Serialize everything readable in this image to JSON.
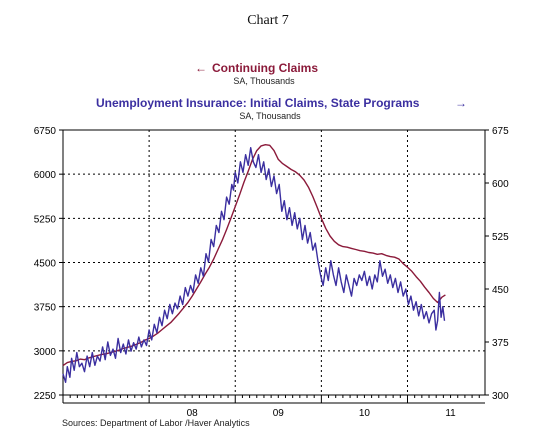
{
  "chart_data": {
    "type": "line",
    "title": "Chart 7",
    "legend": [
      {
        "arrow": "←",
        "name": "Continuing Claims",
        "units": "SA, Thousands",
        "axis": "left",
        "color": "#8b1a3a"
      },
      {
        "arrow": "→",
        "name": "Unemployment Insurance: Initial Claims, State Programs",
        "units": "SA, Thousands",
        "axis": "right",
        "color": "#3b2fa0"
      }
    ],
    "left_axis": {
      "min": 2250,
      "max": 6750,
      "ticks": [
        "2250",
        "3000",
        "3750",
        "4500",
        "5250",
        "6000",
        "6750"
      ],
      "tick_values": [
        2250,
        3000,
        3750,
        4500,
        5250,
        6000,
        6750
      ]
    },
    "right_axis": {
      "min": 300,
      "max": 675,
      "ticks": [
        "300",
        "375",
        "450",
        "525",
        "600",
        "675"
      ],
      "tick_values": [
        300,
        375,
        450,
        525,
        600,
        675
      ]
    },
    "x_axis": {
      "start": 2007.0,
      "end": 2011.9,
      "year_labels": [
        {
          "label": "08",
          "x": 2008.5
        },
        {
          "label": "09",
          "x": 2009.5
        },
        {
          "label": "10",
          "x": 2010.5
        },
        {
          "label": "11",
          "x": 2011.5
        }
      ]
    },
    "vertical_reference_lines": [
      2008.0,
      2009.0,
      2010.0,
      2011.0
    ],
    "horizontal_gridlines": [
      3000,
      3750,
      4500,
      5250,
      6000
    ],
    "grid": true,
    "series": [
      {
        "name": "Continuing Claims",
        "axis": "left",
        "color": "#8b1a3a",
        "points": [
          [
            2007.0,
            2750
          ],
          [
            2007.05,
            2800
          ],
          [
            2007.1,
            2820
          ],
          [
            2007.15,
            2830
          ],
          [
            2007.2,
            2860
          ],
          [
            2007.25,
            2850
          ],
          [
            2007.3,
            2880
          ],
          [
            2007.35,
            2900
          ],
          [
            2007.4,
            2920
          ],
          [
            2007.45,
            2940
          ],
          [
            2007.5,
            2950
          ],
          [
            2007.55,
            2970
          ],
          [
            2007.6,
            2990
          ],
          [
            2007.65,
            3010
          ],
          [
            2007.7,
            3040
          ],
          [
            2007.75,
            3060
          ],
          [
            2007.8,
            3080
          ],
          [
            2007.85,
            3110
          ],
          [
            2007.9,
            3140
          ],
          [
            2007.95,
            3180
          ],
          [
            2008.0,
            3210
          ],
          [
            2008.05,
            3250
          ],
          [
            2008.1,
            3300
          ],
          [
            2008.15,
            3360
          ],
          [
            2008.2,
            3420
          ],
          [
            2008.25,
            3480
          ],
          [
            2008.3,
            3560
          ],
          [
            2008.35,
            3640
          ],
          [
            2008.4,
            3730
          ],
          [
            2008.45,
            3820
          ],
          [
            2008.5,
            3930
          ],
          [
            2008.55,
            4050
          ],
          [
            2008.6,
            4170
          ],
          [
            2008.65,
            4300
          ],
          [
            2008.7,
            4420
          ],
          [
            2008.75,
            4560
          ],
          [
            2008.8,
            4720
          ],
          [
            2008.85,
            4880
          ],
          [
            2008.9,
            5060
          ],
          [
            2008.95,
            5250
          ],
          [
            2009.0,
            5450
          ],
          [
            2009.05,
            5650
          ],
          [
            2009.1,
            5860
          ],
          [
            2009.15,
            6050
          ],
          [
            2009.2,
            6250
          ],
          [
            2009.25,
            6400
          ],
          [
            2009.3,
            6480
          ],
          [
            2009.35,
            6500
          ],
          [
            2009.4,
            6490
          ],
          [
            2009.45,
            6400
          ],
          [
            2009.5,
            6250
          ],
          [
            2009.55,
            6180
          ],
          [
            2009.6,
            6130
          ],
          [
            2009.65,
            6080
          ],
          [
            2009.7,
            6040
          ],
          [
            2009.75,
            5980
          ],
          [
            2009.8,
            5900
          ],
          [
            2009.85,
            5780
          ],
          [
            2009.9,
            5620
          ],
          [
            2009.95,
            5440
          ],
          [
            2010.0,
            5250
          ],
          [
            2010.05,
            5080
          ],
          [
            2010.1,
            4950
          ],
          [
            2010.15,
            4860
          ],
          [
            2010.2,
            4800
          ],
          [
            2010.25,
            4770
          ],
          [
            2010.3,
            4760
          ],
          [
            2010.35,
            4740
          ],
          [
            2010.4,
            4720
          ],
          [
            2010.45,
            4700
          ],
          [
            2010.5,
            4690
          ],
          [
            2010.55,
            4670
          ],
          [
            2010.6,
            4660
          ],
          [
            2010.65,
            4640
          ],
          [
            2010.7,
            4650
          ],
          [
            2010.75,
            4620
          ],
          [
            2010.8,
            4600
          ],
          [
            2010.85,
            4590
          ],
          [
            2010.9,
            4560
          ],
          [
            2010.95,
            4480
          ],
          [
            2011.0,
            4420
          ],
          [
            2011.05,
            4350
          ],
          [
            2011.1,
            4260
          ],
          [
            2011.15,
            4180
          ],
          [
            2011.2,
            4080
          ],
          [
            2011.25,
            3990
          ],
          [
            2011.3,
            3890
          ],
          [
            2011.35,
            3820
          ],
          [
            2011.4,
            3910
          ],
          [
            2011.44,
            3950
          ]
        ]
      },
      {
        "name": "Unemployment Insurance: Initial Claims, State Programs",
        "axis": "right",
        "color": "#3b2fa0",
        "points": [
          [
            2007.0,
            330
          ],
          [
            2007.03,
            318
          ],
          [
            2007.05,
            340
          ],
          [
            2007.08,
            325
          ],
          [
            2007.1,
            352
          ],
          [
            2007.13,
            335
          ],
          [
            2007.16,
            360
          ],
          [
            2007.19,
            340
          ],
          [
            2007.22,
            345
          ],
          [
            2007.25,
            333
          ],
          [
            2007.28,
            355
          ],
          [
            2007.31,
            340
          ],
          [
            2007.34,
            360
          ],
          [
            2007.37,
            342
          ],
          [
            2007.4,
            355
          ],
          [
            2007.43,
            348
          ],
          [
            2007.46,
            368
          ],
          [
            2007.49,
            350
          ],
          [
            2007.52,
            375
          ],
          [
            2007.55,
            356
          ],
          [
            2007.58,
            365
          ],
          [
            2007.61,
            352
          ],
          [
            2007.64,
            380
          ],
          [
            2007.67,
            360
          ],
          [
            2007.7,
            372
          ],
          [
            2007.73,
            358
          ],
          [
            2007.76,
            378
          ],
          [
            2007.79,
            362
          ],
          [
            2007.82,
            374
          ],
          [
            2007.85,
            365
          ],
          [
            2007.88,
            382
          ],
          [
            2007.91,
            368
          ],
          [
            2007.94,
            378
          ],
          [
            2007.97,
            370
          ],
          [
            2008.0,
            392
          ],
          [
            2008.03,
            378
          ],
          [
            2008.06,
            400
          ],
          [
            2008.09,
            388
          ],
          [
            2008.12,
            410
          ],
          [
            2008.15,
            398
          ],
          [
            2008.18,
            420
          ],
          [
            2008.21,
            408
          ],
          [
            2008.24,
            428
          ],
          [
            2008.27,
            415
          ],
          [
            2008.3,
            430
          ],
          [
            2008.33,
            422
          ],
          [
            2008.36,
            440
          ],
          [
            2008.39,
            428
          ],
          [
            2008.42,
            452
          ],
          [
            2008.45,
            440
          ],
          [
            2008.48,
            455
          ],
          [
            2008.51,
            445
          ],
          [
            2008.54,
            470
          ],
          [
            2008.57,
            458
          ],
          [
            2008.6,
            480
          ],
          [
            2008.63,
            468
          ],
          [
            2008.66,
            500
          ],
          [
            2008.69,
            488
          ],
          [
            2008.72,
            520
          ],
          [
            2008.75,
            510
          ],
          [
            2008.78,
            540
          ],
          [
            2008.81,
            530
          ],
          [
            2008.84,
            560
          ],
          [
            2008.87,
            548
          ],
          [
            2008.9,
            580
          ],
          [
            2008.93,
            570
          ],
          [
            2008.96,
            598
          ],
          [
            2008.98,
            590
          ],
          [
            2009.0,
            615
          ],
          [
            2009.03,
            600
          ],
          [
            2009.06,
            630
          ],
          [
            2009.09,
            615
          ],
          [
            2009.12,
            640
          ],
          [
            2009.15,
            625
          ],
          [
            2009.18,
            650
          ],
          [
            2009.21,
            630
          ],
          [
            2009.24,
            622
          ],
          [
            2009.27,
            640
          ],
          [
            2009.3,
            615
          ],
          [
            2009.33,
            630
          ],
          [
            2009.36,
            605
          ],
          [
            2009.39,
            620
          ],
          [
            2009.42,
            595
          ],
          [
            2009.45,
            610
          ],
          [
            2009.48,
            585
          ],
          [
            2009.51,
            598
          ],
          [
            2009.54,
            560
          ],
          [
            2009.57,
            575
          ],
          [
            2009.6,
            548
          ],
          [
            2009.63,
            565
          ],
          [
            2009.66,
            540
          ],
          [
            2009.69,
            558
          ],
          [
            2009.72,
            535
          ],
          [
            2009.75,
            550
          ],
          [
            2009.78,
            520
          ],
          [
            2009.81,
            540
          ],
          [
            2009.84,
            515
          ],
          [
            2009.87,
            530
          ],
          [
            2009.9,
            505
          ],
          [
            2009.93,
            515
          ],
          [
            2009.96,
            490
          ],
          [
            2009.99,
            470
          ],
          [
            2010.02,
            455
          ],
          [
            2010.05,
            480
          ],
          [
            2010.08,
            462
          ],
          [
            2010.11,
            490
          ],
          [
            2010.14,
            470
          ],
          [
            2010.17,
            455
          ],
          [
            2010.2,
            480
          ],
          [
            2010.23,
            460
          ],
          [
            2010.26,
            445
          ],
          [
            2010.29,
            470
          ],
          [
            2010.32,
            455
          ],
          [
            2010.35,
            440
          ],
          [
            2010.38,
            465
          ],
          [
            2010.41,
            455
          ],
          [
            2010.44,
            470
          ],
          [
            2010.47,
            462
          ],
          [
            2010.5,
            475
          ],
          [
            2010.53,
            455
          ],
          [
            2010.56,
            468
          ],
          [
            2010.59,
            450
          ],
          [
            2010.62,
            470
          ],
          [
            2010.65,
            460
          ],
          [
            2010.68,
            490
          ],
          [
            2010.71,
            468
          ],
          [
            2010.74,
            478
          ],
          [
            2010.77,
            458
          ],
          [
            2010.8,
            470
          ],
          [
            2010.83,
            452
          ],
          [
            2010.86,
            465
          ],
          [
            2010.89,
            445
          ],
          [
            2010.92,
            460
          ],
          [
            2010.95,
            440
          ],
          [
            2010.98,
            450
          ],
          [
            2011.01,
            428
          ],
          [
            2011.04,
            440
          ],
          [
            2011.07,
            420
          ],
          [
            2011.1,
            432
          ],
          [
            2011.13,
            412
          ],
          [
            2011.16,
            428
          ],
          [
            2011.19,
            408
          ],
          [
            2011.22,
            418
          ],
          [
            2011.25,
            402
          ],
          [
            2011.28,
            415
          ],
          [
            2011.31,
            420
          ],
          [
            2011.33,
            392
          ],
          [
            2011.35,
            405
          ],
          [
            2011.37,
            445
          ],
          [
            2011.39,
            410
          ],
          [
            2011.41,
            425
          ],
          [
            2011.43,
            405
          ]
        ]
      }
    ],
    "source": "Sources:  Department of Labor /Haver Analytics"
  }
}
